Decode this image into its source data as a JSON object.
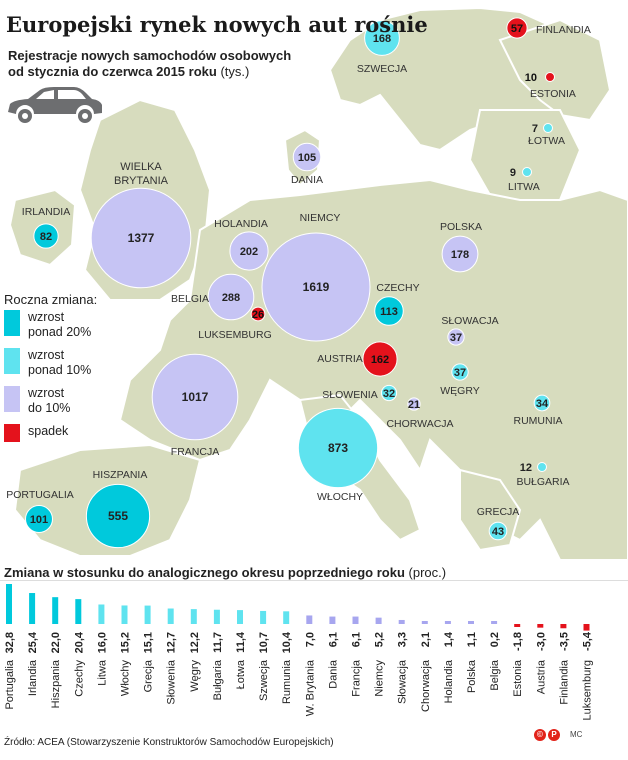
{
  "title": "Europejski rynek nowych aut rośnie",
  "subtitle_line1": "Rejestracje nowych samochodów osobowych",
  "subtitle_line2": "od stycznia do czerwca 2015 roku",
  "subtitle_unit": "(tys.)",
  "legend": {
    "heading": "Roczna zmiana:",
    "items": [
      {
        "label_lines": [
          "wzrost",
          "ponad 20%"
        ],
        "color": "#00c9dc"
      },
      {
        "label_lines": [
          "wzrost",
          "ponad 10%"
        ],
        "color": "#5fe3ef"
      },
      {
        "label_lines": [
          "wzrost",
          "do 10%"
        ],
        "color": "#c6c4f4"
      },
      {
        "label_lines": [
          "spadek"
        ],
        "color": "#e4121c"
      }
    ]
  },
  "colors": {
    "sea": "#ffffff",
    "land": "#d7dcbe",
    "border": "#ffffff",
    "dark_red": "#c4181f"
  },
  "map_data": {
    "type": "bubble_map",
    "countries": [
      {
        "name": "FINLANDIA",
        "value": 57,
        "category": "spadek"
      },
      {
        "name": "SZWECJA",
        "value": 168,
        "category": "wzrost ponad 10%"
      },
      {
        "name": "ESTONIA",
        "value": 10,
        "category": "spadek"
      },
      {
        "name": "ŁOTWA",
        "value": 7,
        "category": "wzrost ponad 10%"
      },
      {
        "name": "LITWA",
        "value": 9,
        "category": "wzrost ponad 10%"
      },
      {
        "name": "DANIA",
        "value": 105,
        "category": "wzrost do 10%"
      },
      {
        "name": "WIELKA BRYTANIA",
        "value": 1377,
        "category": "wzrost do 10%"
      },
      {
        "name": "IRLANDIA",
        "value": 82,
        "category": "wzrost ponad 20%"
      },
      {
        "name": "HOLANDIA",
        "value": 202,
        "category": "wzrost do 10%"
      },
      {
        "name": "NIEMCY",
        "value": 1619,
        "category": "wzrost do 10%"
      },
      {
        "name": "POLSKA",
        "value": 178,
        "category": "wzrost do 10%"
      },
      {
        "name": "BELGIA",
        "value": 288,
        "category": "wzrost do 10%"
      },
      {
        "name": "LUKSEMBURG",
        "value": 26,
        "category": "spadek"
      },
      {
        "name": "CZECHY",
        "value": 113,
        "category": "wzrost ponad 20%"
      },
      {
        "name": "SŁOWACJA",
        "value": 37,
        "category": "wzrost do 10%"
      },
      {
        "name": "AUSTRIA",
        "value": 162,
        "category": "spadek"
      },
      {
        "name": "WĘGRY",
        "value": 37,
        "category": "wzrost ponad 10%"
      },
      {
        "name": "FRANCJA",
        "value": 1017,
        "category": "wzrost do 10%"
      },
      {
        "name": "SŁOWENIA",
        "value": 32,
        "category": "wzrost ponad 10%"
      },
      {
        "name": "CHORWACJA",
        "value": 21,
        "category": "wzrost do 10%"
      },
      {
        "name": "RUMUNIA",
        "value": 34,
        "category": "wzrost ponad 10%"
      },
      {
        "name": "WŁOCHY",
        "value": 873,
        "category": "wzrost ponad 10%"
      },
      {
        "name": "BUŁGARIA",
        "value": 12,
        "category": "wzrost ponad 10%"
      },
      {
        "name": "HISZPANIA",
        "value": 555,
        "category": "wzrost ponad 20%"
      },
      {
        "name": "PORTUGALIA",
        "value": 101,
        "category": "wzrost ponad 20%"
      },
      {
        "name": "GRECJA",
        "value": 43,
        "category": "wzrost ponad 10%"
      }
    ]
  },
  "bottom_title": "Zmiana w stosunku do analogicznego okresu poprzedniego roku",
  "bottom_unit": "(proc.)",
  "chart_data": {
    "type": "bar",
    "title": "Zmiana w stosunku do analogicznego okresu poprzedniego roku",
    "ylabel": "(proc.)",
    "categories": [
      "Portugalia",
      "Irlandia",
      "Hiszpania",
      "Czechy",
      "Litwa",
      "Włochy",
      "Grecja",
      "Słowenia",
      "Węgry",
      "Bułgaria",
      "Łotwa",
      "Szwecja",
      "Rumunia",
      "W. Brytania",
      "Dania",
      "Francja",
      "Niemcy",
      "Słowacja",
      "Chorwacja",
      "Holandia",
      "Polska",
      "Belgia",
      "Estonia",
      "Austria",
      "Finlandia",
      "Luksemburg"
    ],
    "value_labels": [
      "32,8",
      "25,4",
      "22,0",
      "20,4",
      "16,0",
      "15,2",
      "15,1",
      "12,7",
      "12,2",
      "11,7",
      "11,4",
      "10,7",
      "10,4",
      "7,0",
      "6,1",
      "6,1",
      "5,2",
      "3,3",
      "2,1",
      "1,4",
      "1,1",
      "0,2",
      "-1,8",
      "-3,0",
      "-3,5",
      "-5,4"
    ],
    "values": [
      32.8,
      25.4,
      22.0,
      20.4,
      16.0,
      15.2,
      15.1,
      12.7,
      12.2,
      11.7,
      11.4,
      10.7,
      10.4,
      7.0,
      6.1,
      6.1,
      5.2,
      3.3,
      2.1,
      1.4,
      1.1,
      0.2,
      -1.8,
      -3.0,
      -3.5,
      -5.4
    ],
    "colors": [
      "#00c9dc",
      "#00c9dc",
      "#00c9dc",
      "#00c9dc",
      "#5fe3ef",
      "#5fe3ef",
      "#5fe3ef",
      "#5fe3ef",
      "#5fe3ef",
      "#5fe3ef",
      "#5fe3ef",
      "#5fe3ef",
      "#5fe3ef",
      "#a7a6ef",
      "#a7a6ef",
      "#a7a6ef",
      "#a7a6ef",
      "#a7a6ef",
      "#a7a6ef",
      "#a7a6ef",
      "#a7a6ef",
      "#a7a6ef",
      "#e4121c",
      "#e4121c",
      "#e4121c",
      "#e4121c"
    ]
  },
  "source": "Źródło: ACEA (Stowarzyszenie Konstruktorów Samochodów Europejskich)",
  "author": "MC",
  "car_icon": "car-icon"
}
